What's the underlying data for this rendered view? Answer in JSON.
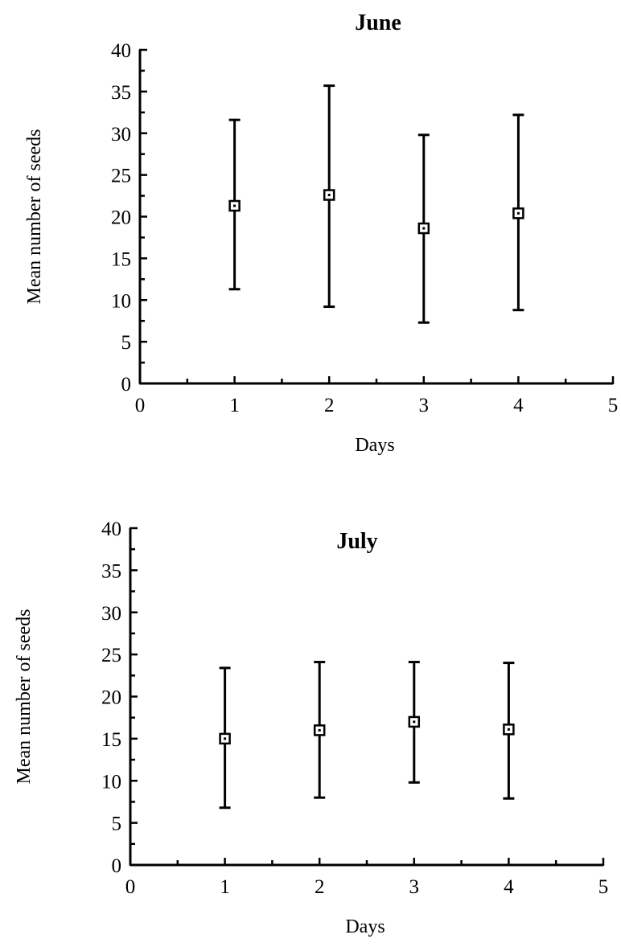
{
  "chart_data": [
    {
      "type": "scatter",
      "title": "June",
      "xlabel": "Days",
      "ylabel": "Mean number of seeds",
      "xlim": [
        0,
        5
      ],
      "ylim": [
        0,
        40
      ],
      "xticks": [
        "0",
        "1",
        "2",
        "3",
        "4",
        "5"
      ],
      "yticks": [
        "0",
        "5",
        "10",
        "15",
        "20",
        "25",
        "30",
        "35",
        "40"
      ],
      "grid": false,
      "legend": "none",
      "marker": "open-square",
      "error_bars": true,
      "series": [
        {
          "x": [
            1,
            2,
            3,
            4
          ],
          "y": [
            21.3,
            22.6,
            18.6,
            20.4
          ],
          "y_lower": [
            11.3,
            9.2,
            7.3,
            8.8
          ],
          "y_upper": [
            31.6,
            35.7,
            29.8,
            32.2
          ]
        }
      ]
    },
    {
      "type": "scatter",
      "title": "July",
      "xlabel": "Days",
      "ylabel": "Mean number of seeds",
      "xlim": [
        0,
        5
      ],
      "ylim": [
        0,
        40
      ],
      "xticks": [
        "0",
        "1",
        "2",
        "3",
        "4",
        "5"
      ],
      "yticks": [
        "0",
        "5",
        "10",
        "15",
        "20",
        "25",
        "30",
        "35",
        "40"
      ],
      "grid": false,
      "legend": "none",
      "marker": "open-square",
      "error_bars": true,
      "series": [
        {
          "x": [
            1,
            2,
            3,
            4
          ],
          "y": [
            15.0,
            16.0,
            17.0,
            16.1
          ],
          "y_lower": [
            6.8,
            8.0,
            9.8,
            7.9
          ],
          "y_upper": [
            23.4,
            24.1,
            24.1,
            24.0
          ]
        }
      ]
    }
  ]
}
